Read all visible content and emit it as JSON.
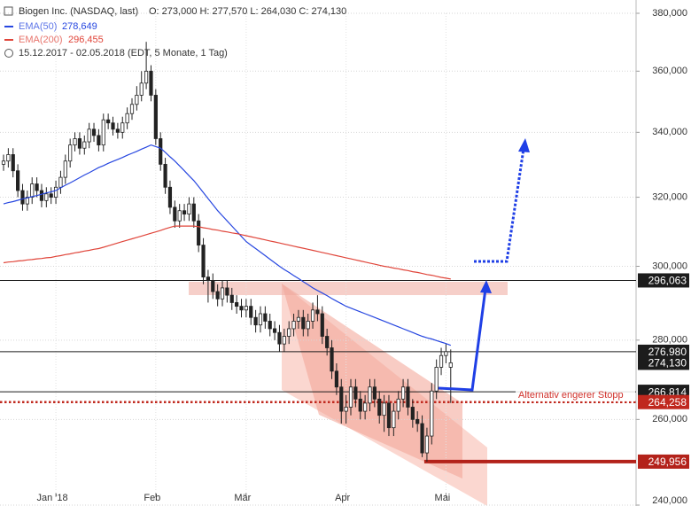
{
  "chart_data": {
    "type": "candlestick",
    "title": "Biogen Inc. (NASDAQ, last)",
    "ohlc_summary": "O: 273,000  H: 277,570  L: 264,030  C: 274,130",
    "period": "15.12.2017 - 02.05.2018 (EDT, 5 Monate, 1 Tag)",
    "log_scale": true,
    "grid": true,
    "ylim": [
      240000,
      380000
    ],
    "yticks": [
      {
        "value": 380000,
        "label": "380,000"
      },
      {
        "value": 360000,
        "label": "360,000"
      },
      {
        "value": 340000,
        "label": "340,000"
      },
      {
        "value": 320000,
        "label": "320,000"
      },
      {
        "value": 300000,
        "label": "300,000"
      },
      {
        "value": 280000,
        "label": "280,000"
      },
      {
        "value": 260000,
        "label": "260,000"
      },
      {
        "value": 240000,
        "label": "240,000"
      }
    ],
    "categories": [
      null,
      null,
      null,
      null,
      null,
      null,
      null,
      null,
      null,
      null,
      null,
      "Jan '18",
      null,
      null,
      null,
      null,
      null,
      null,
      null,
      null,
      null,
      null,
      null,
      null,
      null,
      null,
      null,
      null,
      null,
      null,
      null,
      null,
      "Feb",
      null,
      null,
      null,
      null,
      null,
      null,
      null,
      null,
      null,
      null,
      null,
      null,
      null,
      null,
      null,
      null,
      null,
      null,
      "Mär",
      null,
      null,
      null,
      null,
      null,
      null,
      null,
      null,
      null,
      null,
      null,
      null,
      null,
      null,
      null,
      null,
      null,
      null,
      null,
      null,
      "Apr",
      null,
      null,
      null,
      null,
      null,
      null,
      null,
      null,
      null,
      null,
      null,
      null,
      null,
      null,
      null,
      null,
      null,
      null,
      null,
      null,
      "Mai",
      null
    ],
    "ohlc": {
      "open": [
        330000,
        331000,
        333000,
        328000,
        322000,
        318000,
        320000,
        324000,
        322000,
        319000,
        321000,
        320000,
        323000,
        326000,
        331000,
        336000,
        338000,
        335000,
        337000,
        341000,
        339000,
        336000,
        344000,
        343000,
        341000,
        340000,
        343000,
        346000,
        349000,
        352000,
        356000,
        360000,
        352000,
        338000,
        330000,
        323000,
        317000,
        313000,
        316000,
        315000,
        318000,
        313000,
        306000,
        297000,
        296000,
        293000,
        291000,
        294000,
        292000,
        290000,
        289000,
        288000,
        289000,
        286000,
        284000,
        287000,
        285000,
        283000,
        282000,
        279000,
        281000,
        283000,
        285000,
        286000,
        283000,
        285000,
        288000,
        287000,
        281000,
        278000,
        272000,
        268000,
        262000,
        263000,
        268000,
        265000,
        262000,
        264000,
        268000,
        265000,
        261000,
        264000,
        258000,
        262000,
        265000,
        268000,
        263000,
        260000,
        259000,
        252000,
        256000,
        267000,
        273000,
        276000,
        273000
      ],
      "high": [
        333000,
        335000,
        335000,
        330000,
        324000,
        322000,
        326000,
        326000,
        324000,
        323000,
        323000,
        325000,
        328000,
        333000,
        338000,
        340000,
        340000,
        339000,
        343000,
        343000,
        341000,
        346000,
        346000,
        345000,
        343000,
        345000,
        348000,
        351000,
        355000,
        360000,
        370000,
        362000,
        354000,
        340000,
        332000,
        325000,
        319000,
        318000,
        318000,
        320000,
        320000,
        315000,
        308000,
        299000,
        298000,
        295000,
        296000,
        296000,
        294000,
        292000,
        291000,
        291000,
        291000,
        288000,
        289000,
        289000,
        287000,
        285000,
        284000,
        283000,
        285000,
        287000,
        288000,
        288000,
        287000,
        290000,
        292000,
        289000,
        283000,
        280000,
        274000,
        270000,
        266000,
        270000,
        270000,
        267000,
        266000,
        270000,
        270000,
        267000,
        266000,
        266000,
        264000,
        267000,
        270000,
        270000,
        265000,
        262000,
        261000,
        258000,
        269000,
        275000,
        278000,
        279000,
        277570
      ],
      "low": [
        328000,
        329000,
        326000,
        320000,
        316000,
        316000,
        318000,
        320000,
        317000,
        317000,
        318000,
        318000,
        321000,
        324000,
        329000,
        334000,
        333000,
        333000,
        335000,
        337000,
        334000,
        334000,
        341000,
        339000,
        338000,
        338000,
        341000,
        344000,
        347000,
        350000,
        354000,
        350000,
        336000,
        328000,
        321000,
        315000,
        311000,
        311000,
        313000,
        313000,
        311000,
        304000,
        295000,
        290000,
        291000,
        289000,
        289000,
        290000,
        288000,
        287000,
        286000,
        286000,
        284000,
        282000,
        282000,
        283000,
        281000,
        280000,
        277000,
        277000,
        279000,
        281000,
        283000,
        281000,
        281000,
        283000,
        285000,
        279000,
        276000,
        270000,
        266000,
        259000,
        259000,
        261000,
        263000,
        260000,
        260000,
        262000,
        263000,
        259000,
        257000,
        256000,
        256000,
        260000,
        263000,
        261000,
        258000,
        257000,
        251000,
        249956,
        254000,
        265000,
        271000,
        274000,
        264030
      ],
      "close": [
        331000,
        333000,
        328000,
        322000,
        318000,
        320000,
        324000,
        322000,
        319000,
        321000,
        320000,
        323000,
        326000,
        331000,
        336000,
        338000,
        335000,
        337000,
        341000,
        339000,
        336000,
        344000,
        343000,
        341000,
        340000,
        343000,
        346000,
        349000,
        352000,
        356000,
        360000,
        352000,
        338000,
        330000,
        323000,
        317000,
        313000,
        316000,
        315000,
        318000,
        313000,
        306000,
        297000,
        296000,
        293000,
        291000,
        294000,
        292000,
        290000,
        289000,
        288000,
        289000,
        286000,
        284000,
        287000,
        285000,
        283000,
        282000,
        279000,
        281000,
        283000,
        285000,
        286000,
        283000,
        285000,
        288000,
        287000,
        281000,
        278000,
        272000,
        268000,
        262000,
        263000,
        268000,
        265000,
        262000,
        264000,
        268000,
        265000,
        261000,
        264000,
        258000,
        262000,
        265000,
        268000,
        263000,
        260000,
        259000,
        252000,
        256000,
        267000,
        273000,
        276000,
        277000,
        274130
      ]
    },
    "series": [
      {
        "name": "EMA(50)",
        "last_label": "278,649",
        "color": "#2747e0",
        "values": [
          318000,
          318400,
          318700,
          319100,
          319500,
          319800,
          320200,
          320500,
          320900,
          321300,
          321600,
          322000,
          322800,
          323600,
          324300,
          325100,
          325900,
          326700,
          327400,
          328200,
          329000,
          329600,
          330300,
          330900,
          331500,
          332100,
          332800,
          333400,
          334000,
          334700,
          335300,
          336000,
          335500,
          335000,
          333700,
          332300,
          331000,
          329500,
          328000,
          326500,
          325000,
          323200,
          321400,
          319600,
          317800,
          316000,
          314500,
          313000,
          311500,
          310000,
          308500,
          307000,
          306000,
          305000,
          304000,
          303000,
          302000,
          301000,
          300000,
          299100,
          298300,
          297400,
          296600,
          295700,
          294900,
          294000,
          293300,
          292600,
          291900,
          291100,
          290400,
          289700,
          289000,
          288500,
          288000,
          287500,
          287000,
          286500,
          286000,
          285500,
          285000,
          284500,
          284000,
          283500,
          283000,
          282500,
          282000,
          281500,
          281000,
          280600,
          280300,
          279900,
          279500,
          279100,
          278649
        ]
      },
      {
        "name": "EMA(200)",
        "last_label": "296,455",
        "color": "#e0453a",
        "values": [
          301000,
          301200,
          301300,
          301500,
          301600,
          301800,
          301900,
          302100,
          302200,
          302400,
          302500,
          302800,
          303000,
          303300,
          303500,
          303800,
          304000,
          304300,
          304500,
          304800,
          305000,
          305400,
          305800,
          306200,
          306600,
          307000,
          307400,
          307800,
          308200,
          308600,
          309000,
          309400,
          309800,
          310200,
          310700,
          311100,
          311500,
          311500,
          311500,
          311500,
          311500,
          311300,
          311000,
          310800,
          310500,
          310300,
          310000,
          309800,
          309500,
          309300,
          309000,
          308700,
          308400,
          308100,
          307800,
          307500,
          307200,
          306900,
          306600,
          306300,
          306000,
          305700,
          305400,
          305100,
          304800,
          304500,
          304200,
          303900,
          303600,
          303300,
          303000,
          302700,
          302400,
          302100,
          301800,
          301500,
          301200,
          300900,
          300600,
          300300,
          300000,
          299800,
          299500,
          299300,
          299000,
          298800,
          298500,
          298300,
          298000,
          297700,
          297500,
          297200,
          296900,
          296700,
          296455
        ]
      }
    ],
    "levels": [
      {
        "value": 296063,
        "label": "296,063",
        "color": "#1c1c1c",
        "line": "solid"
      },
      {
        "value": 276980,
        "label": "276,980",
        "color": "#1c1c1c",
        "line": "solid"
      },
      {
        "value": 274130,
        "label": "274,130",
        "color": "#1c1c1c",
        "line": "none"
      },
      {
        "value": 266814,
        "label": "266,814",
        "color": "#1c1c1c",
        "line": "solid"
      },
      {
        "value": 264258,
        "label": "264,258",
        "color": "#c0281e",
        "line": "dotted"
      },
      {
        "value": 249956,
        "label": "249,956",
        "color": "#b3221a",
        "line": "thick"
      }
    ],
    "annotation": "Alternativ engerer Stopp"
  }
}
